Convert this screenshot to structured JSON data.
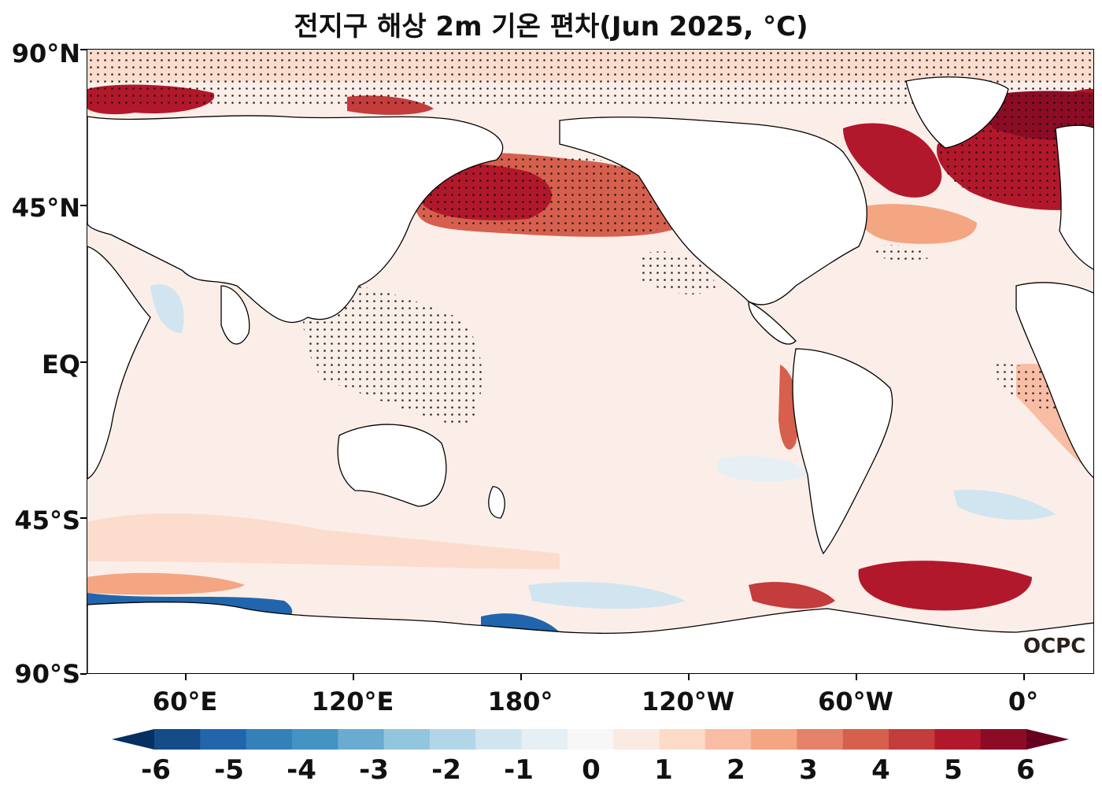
{
  "title": "전지구 해상 2m 기온 편차(Jun 2025, °C)",
  "y_axis": {
    "ticks": [
      "90°N",
      "45°N",
      "EQ",
      "45°S",
      "90°S"
    ]
  },
  "x_axis": {
    "ticks": [
      "60°E",
      "120°E",
      "180°",
      "120°W",
      "60°W",
      "0°"
    ]
  },
  "credit": "OCPC",
  "colorbar": {
    "ticks": [
      "-6",
      "-5",
      "-4",
      "-3",
      "-2",
      "-1",
      "0",
      "1",
      "2",
      "3",
      "4",
      "5",
      "6"
    ],
    "colors": [
      "#053061",
      "#154c87",
      "#2166ac",
      "#3480b9",
      "#4393c3",
      "#6aabd1",
      "#92c5de",
      "#b2d6e8",
      "#d1e5f0",
      "#e6eff4",
      "#f7f7f7",
      "#faebe2",
      "#fddbc7",
      "#f8bda4",
      "#f4a582",
      "#e4826a",
      "#d6604d",
      "#c43c3c",
      "#b2182b",
      "#8d0c25",
      "#67001f"
    ],
    "extend": "both"
  },
  "map": {
    "projection": "PlateCarree",
    "central_longitude": "160°E",
    "stippling": "significance dots"
  }
}
